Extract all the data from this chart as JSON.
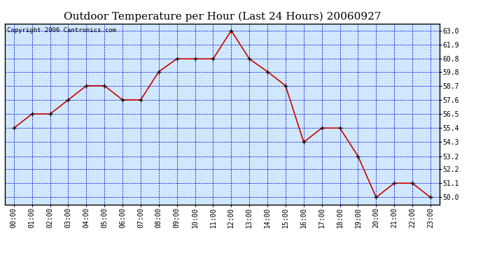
{
  "title": "Outdoor Temperature per Hour (Last 24 Hours) 20060927",
  "copyright_text": "Copyright 2006 Cantronics.com",
  "hours": [
    "00:00",
    "01:00",
    "02:00",
    "03:00",
    "04:00",
    "05:00",
    "06:00",
    "07:00",
    "08:00",
    "09:00",
    "10:00",
    "11:00",
    "12:00",
    "13:00",
    "14:00",
    "15:00",
    "16:00",
    "17:00",
    "18:00",
    "19:00",
    "20:00",
    "21:00",
    "22:00",
    "23:00"
  ],
  "temperatures": [
    55.4,
    56.5,
    56.5,
    57.6,
    58.7,
    58.7,
    57.6,
    57.6,
    59.8,
    60.8,
    60.8,
    60.8,
    63.0,
    60.8,
    59.8,
    58.7,
    54.3,
    55.4,
    55.4,
    53.2,
    50.0,
    51.1,
    51.1,
    50.0
  ],
  "line_color": "#cc0000",
  "marker_color": "#000000",
  "plot_bg_color": "#d0e8ff",
  "grid_color": "#0000cc",
  "border_color": "#000000",
  "title_color": "#000000",
  "yticks": [
    50.0,
    51.1,
    52.2,
    53.2,
    54.3,
    55.4,
    56.5,
    57.6,
    58.7,
    59.8,
    60.8,
    61.9,
    63.0
  ],
  "ylim": [
    49.45,
    63.55
  ],
  "title_fontsize": 11,
  "copyright_fontsize": 6.5,
  "tick_fontsize": 7,
  "fig_bg_color": "#ffffff",
  "fig_width": 6.9,
  "fig_height": 3.75,
  "fig_dpi": 100
}
